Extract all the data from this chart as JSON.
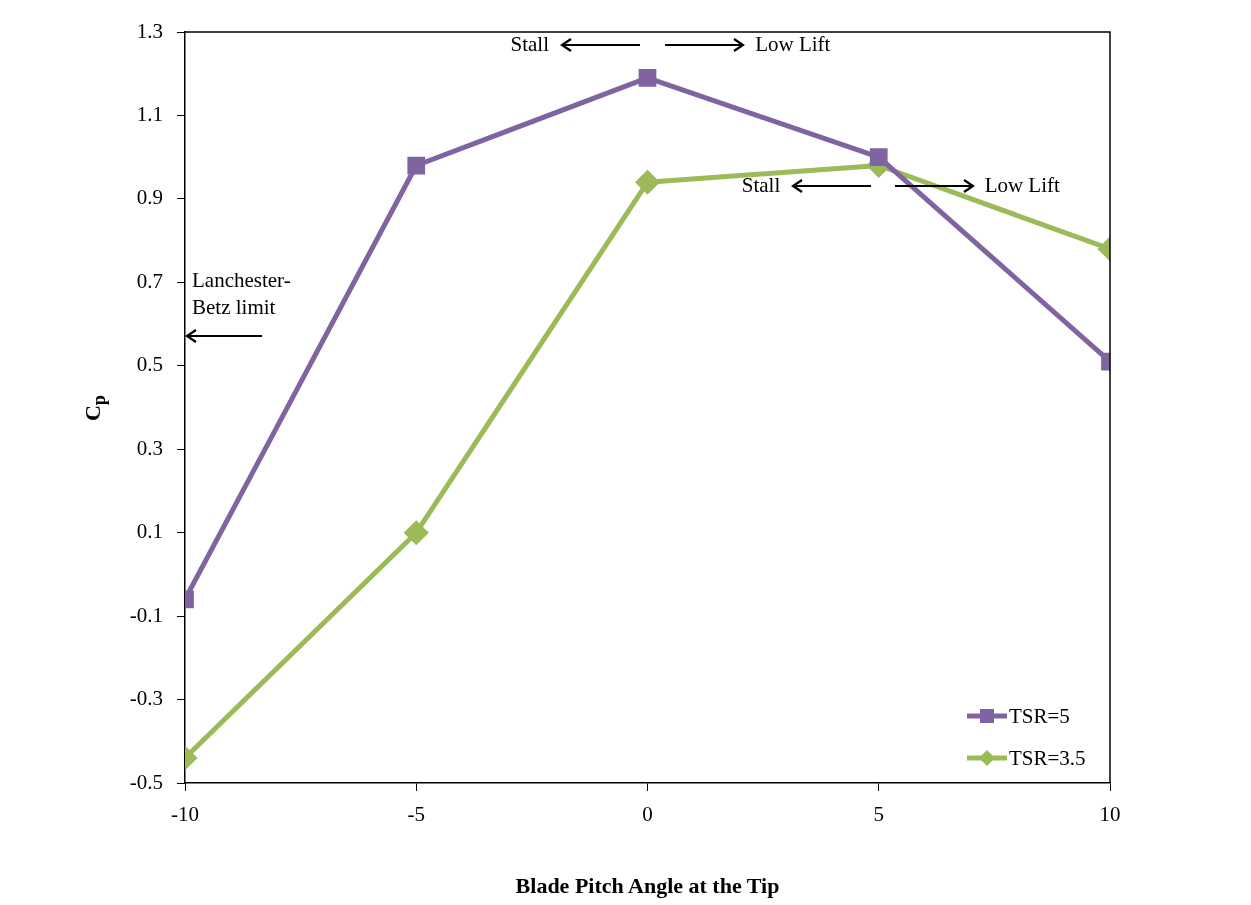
{
  "chart_data": {
    "type": "line",
    "xlabel": "Blade Pitch Angle at the Tip",
    "ylabel": "C$_{p}$",
    "x": [
      -10,
      -5,
      0,
      5,
      10
    ],
    "series": [
      {
        "name": "TSR=5",
        "color": "#8064a2",
        "marker": "square",
        "values": [
          -0.06,
          0.98,
          1.19,
          1.0,
          0.51
        ]
      },
      {
        "name": "TSR=3.5",
        "color": "#9bbb59",
        "marker": "diamond",
        "values": [
          -0.44,
          0.1,
          0.94,
          0.98,
          0.78
        ]
      }
    ],
    "xlim": [
      -10,
      10
    ],
    "xticks": [
      -10,
      -5,
      0,
      5,
      10
    ],
    "ylim": [
      -0.5,
      1.3
    ],
    "yticks": [
      -0.5,
      -0.3,
      -0.1,
      0.1,
      0.3,
      0.5,
      0.7,
      0.9,
      1.1,
      1.3
    ],
    "grid": false,
    "legend": "bottom right",
    "line_style": "solid",
    "annotations": [
      "Stall",
      "Low Lift",
      "Stall",
      "Low Lift",
      "Lanchester-Betz limit"
    ]
  }
}
